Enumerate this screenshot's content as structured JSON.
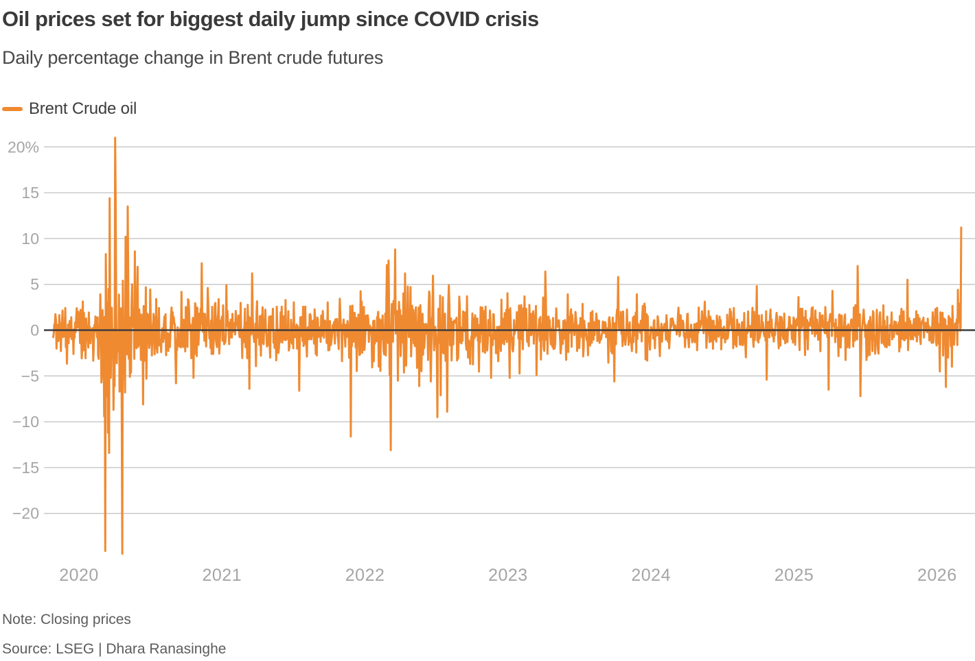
{
  "header": {
    "title": "Oil prices set for biggest daily jump since COVID crisis",
    "subtitle": "Daily percentage change in Brent crude futures"
  },
  "legend": {
    "label": "Brent Crude oil"
  },
  "footer": {
    "note": "Note: Closing prices",
    "source": "Source: LSEG | Dhara Ranasinghe"
  },
  "chart_data": {
    "type": "line",
    "title": "Oil prices set for biggest daily jump since COVID crisis",
    "subtitle": "Daily percentage change in Brent crude futures",
    "series_name": "Brent Crude oil",
    "unit": "%",
    "grid": "horizontal",
    "legend_position": "top-left",
    "x_start": 2019.82,
    "x_end": 2026.17,
    "points_per_year": 261,
    "seed": 20,
    "xlim": [
      2019.75,
      2026.3
    ],
    "ylim": [
      -25,
      22
    ],
    "y_ticks": [
      {
        "v": 20,
        "label": "20%"
      },
      {
        "v": 15,
        "label": "15"
      },
      {
        "v": 10,
        "label": "10"
      },
      {
        "v": 5,
        "label": "5"
      },
      {
        "v": 0,
        "label": "0"
      },
      {
        "v": -5,
        "label": "−5"
      },
      {
        "v": -10,
        "label": "−10"
      },
      {
        "v": -15,
        "label": "−15"
      },
      {
        "v": -20,
        "label": "−20"
      }
    ],
    "x_ticks": [
      {
        "v": 2020,
        "label": "2020"
      },
      {
        "v": 2021,
        "label": "2021"
      },
      {
        "v": 2022,
        "label": "2022"
      },
      {
        "v": 2023,
        "label": "2023"
      },
      {
        "v": 2024,
        "label": "2024"
      },
      {
        "v": 2025,
        "label": "2025"
      },
      {
        "v": 2026,
        "label": "2026"
      }
    ],
    "colors": {
      "series": "#EF8A31",
      "zero_line": "#3D3D3D",
      "gridline": "#C9C9C9",
      "tick_label": "#A5A5A5"
    },
    "key_events": [
      [
        2020.175,
        -9.4
      ],
      [
        2020.183,
        -24.1
      ],
      [
        2020.187,
        8.3
      ],
      [
        2020.195,
        -7.2
      ],
      [
        2020.203,
        -11.2
      ],
      [
        2020.207,
        4.5
      ],
      [
        2020.211,
        -13.4
      ],
      [
        2020.215,
        14.4
      ],
      [
        2020.223,
        -5.2
      ],
      [
        2020.242,
        -8.7
      ],
      [
        2020.25,
        -6.1
      ],
      [
        2020.254,
        21.0
      ],
      [
        2020.258,
        13.9
      ],
      [
        2020.266,
        -3.6
      ],
      [
        2020.285,
        -6.7
      ],
      [
        2020.3,
        -8.9
      ],
      [
        2020.304,
        -24.4
      ],
      [
        2020.308,
        5.4
      ],
      [
        2020.32,
        -6.8
      ],
      [
        2020.327,
        10.2
      ],
      [
        2020.34,
        13.5
      ],
      [
        2020.39,
        8.6
      ],
      [
        2020.41,
        6.9
      ],
      [
        2020.45,
        -8.1
      ],
      [
        2020.47,
        -5.3
      ],
      [
        2020.68,
        -5.8
      ],
      [
        2020.8,
        -5.2
      ],
      [
        2020.86,
        7.3
      ],
      [
        2020.9,
        4.6
      ],
      [
        2021.03,
        4.9
      ],
      [
        2021.19,
        -6.4
      ],
      [
        2021.21,
        6.2
      ],
      [
        2021.54,
        -6.6
      ],
      [
        2021.9,
        -11.6
      ],
      [
        2022.155,
        7.1
      ],
      [
        2022.163,
        7.6
      ],
      [
        2022.171,
        -4.9
      ],
      [
        2022.179,
        -13.1
      ],
      [
        2022.21,
        8.8
      ],
      [
        2022.23,
        -5.5
      ],
      [
        2022.28,
        6.2
      ],
      [
        2022.38,
        -6.1
      ],
      [
        2022.46,
        -5.6
      ],
      [
        2022.505,
        -9.5
      ],
      [
        2022.53,
        -7.1
      ],
      [
        2022.575,
        -8.9
      ],
      [
        2022.88,
        -5.2
      ],
      [
        2023.01,
        -5.2
      ],
      [
        2023.2,
        -4.9
      ],
      [
        2023.26,
        6.4
      ],
      [
        2023.745,
        -5.6
      ],
      [
        2023.77,
        5.8
      ],
      [
        2024.74,
        4.8
      ],
      [
        2024.81,
        -5.4
      ],
      [
        2025.03,
        3.6
      ],
      [
        2025.24,
        -6.5
      ],
      [
        2025.27,
        4.3
      ],
      [
        2025.445,
        7.0
      ],
      [
        2025.465,
        -7.2
      ],
      [
        2025.795,
        5.5
      ],
      [
        2026.02,
        -4.5
      ],
      [
        2026.06,
        -6.2
      ],
      [
        2026.145,
        4.4
      ],
      [
        2026.17,
        11.2
      ]
    ],
    "volatility_periods": [
      [
        2019.82,
        2020.13,
        1.35
      ],
      [
        2020.13,
        2020.36,
        2.6
      ],
      [
        2020.36,
        2020.55,
        2.0
      ],
      [
        2020.55,
        2021.0,
        1.55
      ],
      [
        2021.0,
        2021.8,
        1.45
      ],
      [
        2021.8,
        2022.1,
        1.65
      ],
      [
        2022.1,
        2022.65,
        2.2
      ],
      [
        2022.65,
        2023.1,
        1.75
      ],
      [
        2023.1,
        2024.0,
        1.45
      ],
      [
        2024.0,
        2024.6,
        1.15
      ],
      [
        2024.6,
        2025.0,
        1.25
      ],
      [
        2025.0,
        2025.6,
        1.35
      ],
      [
        2025.6,
        2026.05,
        1.15
      ],
      [
        2026.05,
        2026.18,
        1.55
      ]
    ]
  }
}
